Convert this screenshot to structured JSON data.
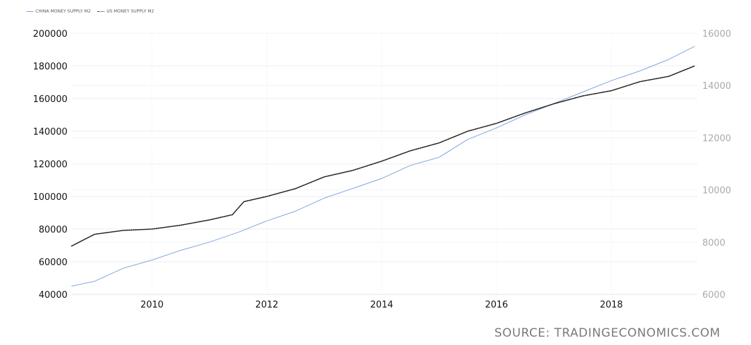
{
  "legend": {
    "items": [
      {
        "label": "CHINA MONEY SUPPLY M2",
        "color": "#7fa6df",
        "style": "solid"
      },
      {
        "label": "US MONEY SUPPLY M2",
        "color": "#222222",
        "style": "dotted"
      }
    ]
  },
  "source": "SOURCE: TRADINGECONOMICS.COM",
  "chart_data": {
    "type": "line",
    "x_ticks": [
      "2010",
      "2012",
      "2014",
      "2016",
      "2018"
    ],
    "y_left_ticks": [
      "40000",
      "60000",
      "80000",
      "100000",
      "120000",
      "140000",
      "160000",
      "180000",
      "200000"
    ],
    "y_right_ticks": [
      "6000",
      "8000",
      "10000",
      "12000",
      "14000",
      "16000"
    ],
    "ylim_left": [
      40000,
      200000
    ],
    "ylim_right": [
      6000,
      16000
    ],
    "xlim": [
      2008.6,
      2019.5
    ],
    "grid": true,
    "legend_position": "top-left",
    "series": [
      {
        "name": "CHINA MONEY SUPPLY M2",
        "axis": "left",
        "color": "#7fa6df",
        "x": [
          2008.6,
          2009.0,
          2009.5,
          2010.0,
          2010.5,
          2011.0,
          2011.5,
          2012.0,
          2012.5,
          2013.0,
          2013.5,
          2014.0,
          2014.5,
          2015.0,
          2015.5,
          2016.0,
          2016.5,
          2017.0,
          2017.5,
          2018.0,
          2018.5,
          2019.0,
          2019.45
        ],
        "y": [
          45000,
          48000,
          56000,
          61000,
          67000,
          72000,
          78000,
          85000,
          91000,
          99000,
          105000,
          111000,
          119000,
          124000,
          135000,
          142000,
          150000,
          157000,
          164000,
          171000,
          177000,
          184000,
          192000
        ]
      },
      {
        "name": "US MONEY SUPPLY M2",
        "axis": "right",
        "color": "#222222",
        "x": [
          2008.6,
          2009.0,
          2009.5,
          2010.0,
          2010.5,
          2011.0,
          2011.4,
          2011.6,
          2012.0,
          2012.5,
          2013.0,
          2013.5,
          2014.0,
          2014.5,
          2015.0,
          2015.5,
          2016.0,
          2016.5,
          2017.0,
          2017.5,
          2018.0,
          2018.5,
          2019.0,
          2019.45
        ],
        "y": [
          7850,
          8300,
          8450,
          8500,
          8650,
          8850,
          9050,
          9550,
          9750,
          10050,
          10500,
          10750,
          11100,
          11500,
          11800,
          12250,
          12550,
          12950,
          13300,
          13600,
          13800,
          14150,
          14350,
          14750
        ]
      }
    ]
  }
}
